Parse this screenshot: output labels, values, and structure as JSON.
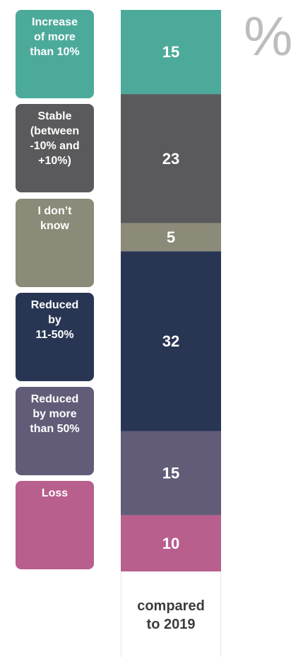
{
  "unit_symbol": "%",
  "caption": "compared\nto 2019",
  "chart_data": {
    "type": "bar",
    "stacked": true,
    "orientation": "vertical",
    "categories": [
      "compared to 2019"
    ],
    "series": [
      {
        "name": "Increase of more than 10%",
        "value": 15,
        "color": "#4caa9b"
      },
      {
        "name": "Stable (between -10% and +10%)",
        "value": 23,
        "color": "#5a5a5c"
      },
      {
        "name": "I don’t know",
        "value": 5,
        "color": "#8c8a78"
      },
      {
        "name": "Reduced by 11-50%",
        "value": 32,
        "color": "#283654"
      },
      {
        "name": "Reduced by more than 50%",
        "value": 15,
        "color": "#625c78"
      },
      {
        "name": "Loss",
        "value": 10,
        "color": "#b85f8e"
      }
    ],
    "ylabel": "%",
    "legend_position": "left"
  },
  "legend": [
    {
      "label": "Increase\nof more\nthan 10%"
    },
    {
      "label": "Stable\n(between\n-10% and\n+10%)"
    },
    {
      "label": "I don’t\nknow"
    },
    {
      "label": "Reduced\nby\n11-50%"
    },
    {
      "label": "Reduced\nby more\nthan 50%"
    },
    {
      "label": "Loss"
    }
  ]
}
